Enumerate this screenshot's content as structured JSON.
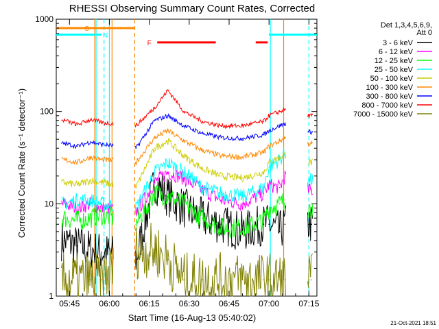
{
  "chart_data": {
    "type": "line",
    "title": "RHESSI Observing Summary Count Rates, Corrected",
    "xlabel": "Start Time (16-Aug-13 05:40:02)",
    "ylabel": "Corrected Count Rate (s⁻¹ detector⁻¹)",
    "y_scale": "log",
    "ylim": [
      1,
      1000
    ],
    "xlim": [
      "05:40:02",
      "07:18:00"
    ],
    "x_ticks": [
      "05:45",
      "06:00",
      "06:15",
      "06:30",
      "06:45",
      "07:00",
      "07:15"
    ],
    "y_ticks": [
      "1",
      "10",
      "100",
      "1000"
    ],
    "legend_header": [
      "Det 1,3,4,5,6,9,",
      "Att 0"
    ],
    "legend_position": "right",
    "timestamp": "21-Oct-2021 18:51",
    "series": [
      {
        "name": "3 - 6 keV",
        "color": "#000000",
        "x": [
          "05:43",
          "05:48",
          "05:53",
          "05:57",
          "06:10",
          "06:17",
          "06:22",
          "06:28",
          "06:35",
          "06:42",
          "06:50",
          "06:58",
          "07:00",
          "07:04",
          "07:06",
          "07:15",
          "07:16"
        ],
        "y": [
          4.0,
          3.5,
          3.2,
          3.0,
          2.5,
          17,
          12,
          9,
          7,
          6,
          5,
          6,
          6,
          5,
          6,
          6,
          6
        ]
      },
      {
        "name": "6 - 12 keV",
        "color": "#ff00ff",
        "x": [
          "05:43",
          "05:48",
          "05:53",
          "05:57",
          "06:10",
          "06:17",
          "06:22",
          "06:28",
          "06:35",
          "06:42",
          "06:50",
          "06:58",
          "07:00",
          "07:04",
          "07:06",
          "07:15",
          "07:16"
        ],
        "y": [
          10,
          9,
          10,
          9,
          8,
          17,
          22,
          19,
          14,
          11,
          10,
          13,
          16,
          15,
          20,
          14,
          14
        ]
      },
      {
        "name": "12 - 25 keV",
        "color": "#00ff00",
        "x": [
          "05:43",
          "05:48",
          "05:53",
          "05:57",
          "06:10",
          "06:17",
          "06:22",
          "06:28",
          "06:35",
          "06:42",
          "06:50",
          "06:58",
          "07:00",
          "07:04",
          "07:06",
          "07:15",
          "07:16"
        ],
        "y": [
          7,
          6.5,
          7,
          7.5,
          6,
          13,
          12,
          10,
          7,
          5.5,
          5.5,
          6.5,
          9,
          10,
          11,
          9,
          9
        ]
      },
      {
        "name": "25 - 50 keV",
        "color": "#00ffff",
        "x": [
          "05:43",
          "05:48",
          "05:53",
          "05:57",
          "06:10",
          "06:17",
          "06:22",
          "06:28",
          "06:35",
          "06:42",
          "06:50",
          "06:58",
          "07:00",
          "07:04",
          "07:06",
          "07:15",
          "07:16"
        ],
        "y": [
          10,
          11,
          11,
          10,
          9,
          22,
          28,
          22,
          15,
          13,
          12,
          15,
          25,
          30,
          35,
          18,
          18
        ]
      },
      {
        "name": "50 - 100 keV",
        "color": "#cccc00",
        "x": [
          "05:43",
          "05:48",
          "05:53",
          "05:57",
          "06:10",
          "06:17",
          "06:22",
          "06:28",
          "06:35",
          "06:42",
          "06:50",
          "06:58",
          "07:00",
          "07:04",
          "07:06",
          "07:15",
          "07:16"
        ],
        "y": [
          17,
          16,
          18,
          17,
          15,
          40,
          48,
          33,
          24,
          20,
          19,
          22,
          28,
          32,
          34,
          28,
          28
        ]
      },
      {
        "name": "100 - 300 keV",
        "color": "#ff8800",
        "x": [
          "05:43",
          "05:48",
          "05:53",
          "05:57",
          "06:10",
          "06:17",
          "06:22",
          "06:28",
          "06:35",
          "06:42",
          "06:50",
          "06:58",
          "07:00",
          "07:04",
          "07:06",
          "07:15",
          "07:16"
        ],
        "y": [
          30,
          28,
          32,
          30,
          28,
          52,
          62,
          48,
          38,
          33,
          32,
          36,
          42,
          48,
          52,
          45,
          45
        ]
      },
      {
        "name": "300 - 800 keV",
        "color": "#0000ff",
        "x": [
          "05:43",
          "05:48",
          "05:53",
          "05:57",
          "06:10",
          "06:17",
          "06:22",
          "06:28",
          "06:35",
          "06:42",
          "06:50",
          "06:58",
          "07:00",
          "07:04",
          "07:06",
          "07:15",
          "07:16"
        ],
        "y": [
          45,
          42,
          47,
          44,
          40,
          80,
          90,
          70,
          58,
          52,
          51,
          56,
          62,
          70,
          74,
          60,
          60
        ]
      },
      {
        "name": "800 - 7000 keV",
        "color": "#ff0000",
        "x": [
          "05:43",
          "05:48",
          "05:53",
          "05:57",
          "06:10",
          "06:17",
          "06:22",
          "06:28",
          "06:35",
          "06:42",
          "06:50",
          "06:58",
          "07:00",
          "07:04",
          "07:06",
          "07:15",
          "07:16"
        ],
        "y": [
          80,
          72,
          82,
          76,
          70,
          110,
          170,
          100,
          78,
          70,
          70,
          78,
          90,
          100,
          105,
          90,
          90
        ]
      },
      {
        "name": "7000 - 15000 keV",
        "color": "#808000",
        "x": [
          "05:43",
          "05:48",
          "05:53",
          "05:57",
          "06:10",
          "06:17",
          "06:22",
          "06:28",
          "06:35",
          "06:42",
          "06:50",
          "06:58",
          "07:00",
          "07:04",
          "07:06",
          "07:15",
          "07:16"
        ],
        "y": [
          1.5,
          1.5,
          1.5,
          1.5,
          3.0,
          3.2,
          2.5,
          1.5,
          1.5,
          1.5,
          1.5,
          1.5,
          1.5,
          1.5,
          1.5,
          1.5,
          1.5
        ]
      }
    ],
    "flags": [
      {
        "label": "S",
        "color": "#ff8800",
        "y": 800,
        "x_start": "05:40:02",
        "x_end": "06:09:30",
        "label_x": "05:51:30"
      },
      {
        "label": "N",
        "color": "#00ffff",
        "y": 680,
        "x_start": "05:40:02",
        "x_end": "05:57:00",
        "label_x": "05:58:30"
      },
      {
        "label": "F",
        "color": "#ff0000",
        "y": 560,
        "x_start": "06:18:00",
        "x_end": "06:40:00",
        "label_x": "06:15:00"
      },
      {
        "label": "",
        "color": "#ff0000",
        "y": 560,
        "x_start": "06:55:00",
        "x_end": "06:59:30",
        "label_x": ""
      },
      {
        "label": "",
        "color": "#00ffff",
        "y": 680,
        "x_start": "07:00:00",
        "x_end": "07:18:00",
        "label_x": ""
      }
    ],
    "vertical_markers": [
      {
        "x": "05:58:00",
        "color": "#00ffff",
        "style": "dashed"
      },
      {
        "x": "05:55:00",
        "color": "#00ffff",
        "style": "solid"
      },
      {
        "x": "06:00:00",
        "color": "#00ffff",
        "style": "solid"
      },
      {
        "x": "05:54:30",
        "color": "#ff8800",
        "style": "solid"
      },
      {
        "x": "06:01:00",
        "color": "#ff8800",
        "style": "solid"
      },
      {
        "x": "06:09:30",
        "color": "#ff8800",
        "style": "dashed"
      },
      {
        "x": "07:00:30",
        "color": "#00ffff",
        "style": "solid"
      },
      {
        "x": "07:05:30",
        "color": "#ff8800",
        "style": "solid"
      },
      {
        "x": "07:15:00",
        "color": "#00ffff",
        "style": "dashed"
      }
    ],
    "gaps": [
      [
        "06:01:30",
        "06:09:30"
      ],
      [
        "07:06:30",
        "07:14:30"
      ]
    ]
  }
}
